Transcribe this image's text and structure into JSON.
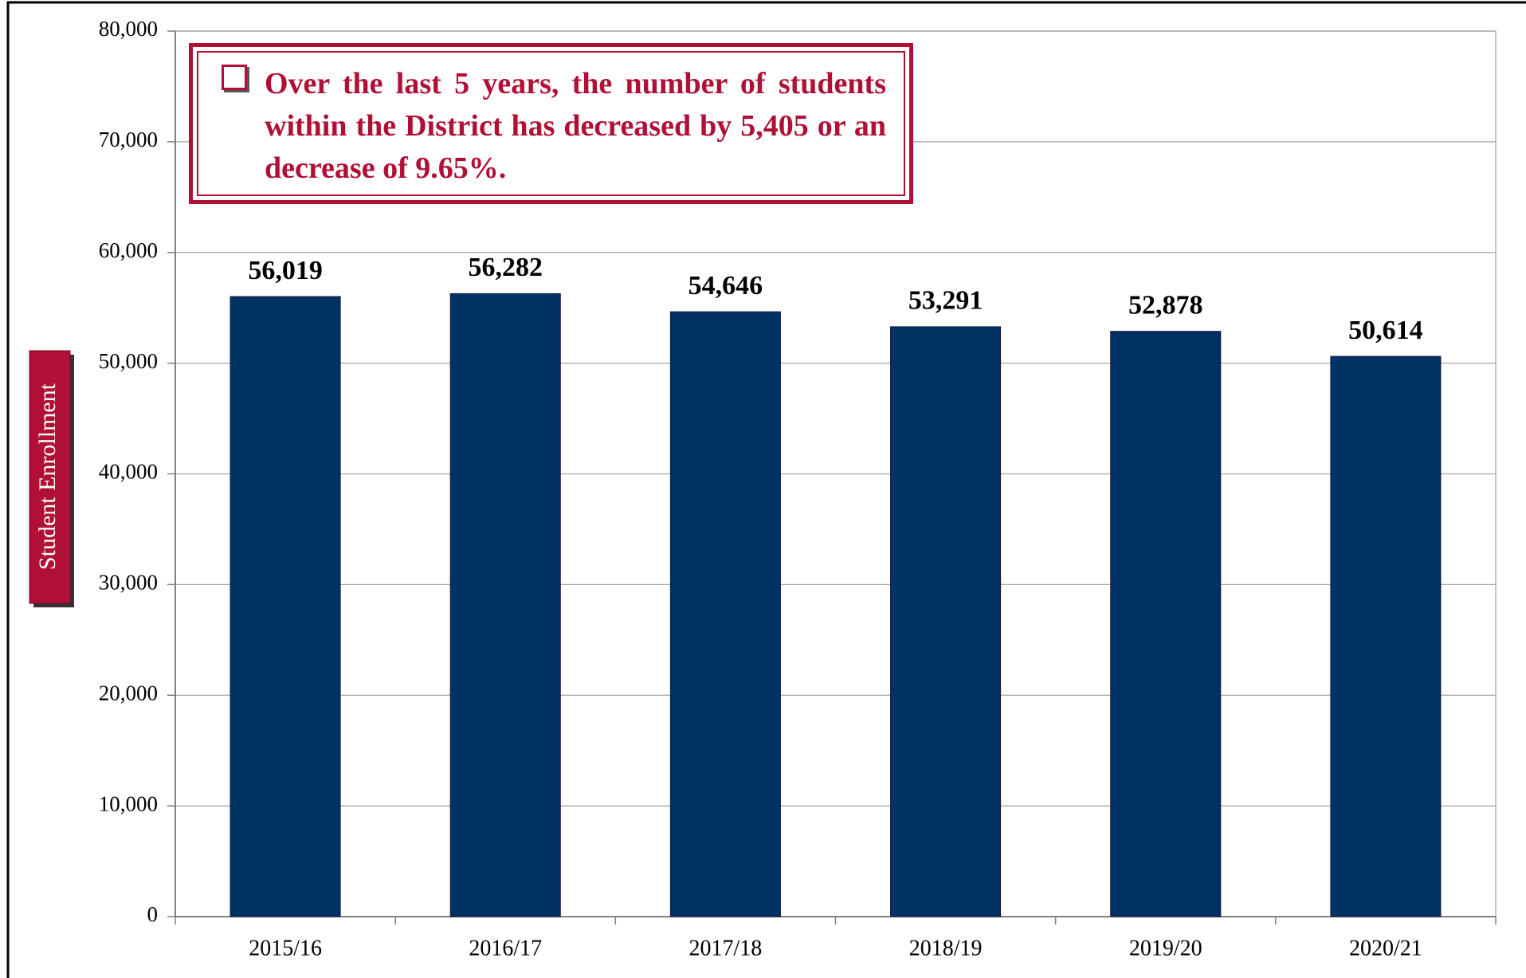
{
  "chart_data": {
    "type": "bar",
    "y_axis_label": "Student Enrollment",
    "annotation": "Over the last 5 years, the number of students within the District has decreased by 5,405 or an decrease of 9.65%.",
    "categories": [
      "2015/16",
      "2016/17",
      "2017/18",
      "2018/19",
      "2019/20",
      "2020/21"
    ],
    "values": [
      56019,
      56282,
      54646,
      53291,
      52878,
      50614
    ],
    "value_labels": [
      "56,019",
      "56,282",
      "54,646",
      "53,291",
      "52,878",
      "50,614"
    ],
    "color": "#003263",
    "ylim": [
      0,
      80000
    ],
    "yticks": [
      0,
      {
        "value": 10000,
        "label": "10,000"
      },
      {
        "value": 20000,
        "label": "20,000"
      },
      {
        "value": 30000,
        "label": "30,000"
      },
      {
        "value": 40000,
        "label": "40,000"
      },
      {
        "value": 50000,
        "label": "50,000"
      },
      {
        "value": 60000,
        "label": "60,000"
      },
      {
        "value": 70000,
        "label": "70,000"
      },
      {
        "value": 80000,
        "label": "80,000"
      }
    ],
    "grid": true
  }
}
